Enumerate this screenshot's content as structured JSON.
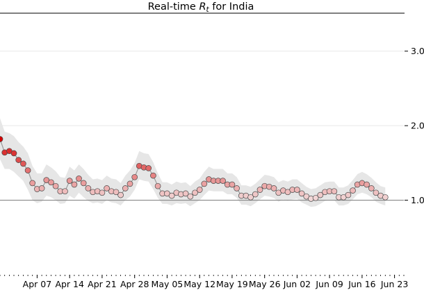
{
  "chart_data": {
    "type": "line",
    "title_prefix": "Real-time ",
    "title_var": "R",
    "title_sub": "t",
    "title_suffix": " for India",
    "x_start": "2020-03-30",
    "x_labels": [
      {
        "label": "Apr 07",
        "date": "2020-04-07"
      },
      {
        "label": "Apr 14",
        "date": "2020-04-14"
      },
      {
        "label": "Apr 21",
        "date": "2020-04-21"
      },
      {
        "label": "Apr 28",
        "date": "2020-04-28"
      },
      {
        "label": "May 05",
        "date": "2020-05-05"
      },
      {
        "label": "May 12",
        "date": "2020-05-12"
      },
      {
        "label": "May 19",
        "date": "2020-05-19"
      },
      {
        "label": "May 26",
        "date": "2020-05-26"
      },
      {
        "label": "Jun 02",
        "date": "2020-06-02"
      },
      {
        "label": "Jun 09",
        "date": "2020-06-09"
      },
      {
        "label": "Jun 16",
        "date": "2020-06-16"
      },
      {
        "label": "Jun 23",
        "date": "2020-06-23"
      }
    ],
    "y_ticks": [
      "1.0",
      "2.0",
      "3.0"
    ],
    "y_tick_values": [
      1.0,
      2.0,
      3.0
    ],
    "ylim": [
      0.0,
      3.5
    ],
    "xlim": [
      "2020-03-30",
      "2020-06-25"
    ],
    "y_axis_side": "right",
    "grid": "horizontal",
    "reference_line": 1.0,
    "colors": {
      "low": "#f2dcdc",
      "high": "#d40000",
      "band": "#e6e6e6",
      "line": "#9a9a9a",
      "grid": "#e8e8e8",
      "ref": "#888888"
    },
    "series": [
      {
        "values": [
          1.82,
          1.64,
          1.66,
          1.63,
          1.54,
          1.49,
          1.4,
          1.23,
          1.15,
          1.16,
          1.27,
          1.24,
          1.19,
          1.12,
          1.12,
          1.26,
          1.21,
          1.29,
          1.23,
          1.16,
          1.11,
          1.12,
          1.1,
          1.16,
          1.12,
          1.11,
          1.07,
          1.16,
          1.22,
          1.31,
          1.46,
          1.44,
          1.43,
          1.33,
          1.19,
          1.09,
          1.09,
          1.06,
          1.1,
          1.08,
          1.09,
          1.05,
          1.1,
          1.14,
          1.22,
          1.28,
          1.26,
          1.26,
          1.26,
          1.21,
          1.21,
          1.16,
          1.06,
          1.06,
          1.04,
          1.08,
          1.14,
          1.19,
          1.18,
          1.16,
          1.1,
          1.13,
          1.11,
          1.14,
          1.14,
          1.09,
          1.05,
          1.02,
          1.03,
          1.07,
          1.11,
          1.12,
          1.12,
          1.04,
          1.04,
          1.07,
          1.13,
          1.21,
          1.23,
          1.21,
          1.16,
          1.1,
          1.06,
          1.04
        ],
        "low": [
          1.55,
          1.42,
          1.42,
          1.38,
          1.32,
          1.26,
          1.14,
          1.0,
          0.96,
          0.98,
          1.06,
          1.04,
          1.0,
          0.95,
          0.96,
          1.06,
          1.02,
          1.1,
          1.04,
          0.99,
          0.96,
          0.97,
          0.95,
          1.0,
          0.97,
          0.96,
          0.93,
          1.0,
          1.05,
          1.14,
          1.28,
          1.26,
          1.25,
          1.15,
          1.03,
          0.95,
          0.95,
          0.93,
          0.96,
          0.95,
          0.96,
          0.92,
          0.96,
          1.0,
          1.07,
          1.13,
          1.12,
          1.12,
          1.12,
          1.08,
          1.08,
          1.03,
          0.94,
          0.94,
          0.92,
          0.96,
          1.01,
          1.06,
          1.05,
          1.03,
          0.98,
          1.01,
          0.99,
          1.01,
          1.02,
          0.97,
          0.94,
          0.91,
          0.92,
          0.95,
          0.99,
          1.0,
          1.0,
          0.93,
          0.93,
          0.95,
          1.01,
          1.08,
          1.1,
          1.08,
          1.04,
          0.98,
          0.95,
          0.93
        ],
        "high": [
          2.1,
          1.92,
          1.9,
          1.86,
          1.78,
          1.72,
          1.63,
          1.46,
          1.36,
          1.36,
          1.48,
          1.44,
          1.39,
          1.31,
          1.3,
          1.45,
          1.4,
          1.48,
          1.42,
          1.34,
          1.28,
          1.29,
          1.27,
          1.33,
          1.29,
          1.28,
          1.23,
          1.33,
          1.4,
          1.5,
          1.66,
          1.63,
          1.62,
          1.51,
          1.36,
          1.24,
          1.24,
          1.21,
          1.25,
          1.23,
          1.24,
          1.19,
          1.25,
          1.29,
          1.38,
          1.45,
          1.42,
          1.42,
          1.42,
          1.36,
          1.36,
          1.31,
          1.2,
          1.2,
          1.18,
          1.22,
          1.28,
          1.34,
          1.33,
          1.31,
          1.24,
          1.27,
          1.25,
          1.28,
          1.28,
          1.23,
          1.18,
          1.15,
          1.16,
          1.2,
          1.24,
          1.25,
          1.25,
          1.17,
          1.17,
          1.2,
          1.27,
          1.35,
          1.38,
          1.35,
          1.3,
          1.24,
          1.19,
          1.17
        ]
      }
    ]
  }
}
